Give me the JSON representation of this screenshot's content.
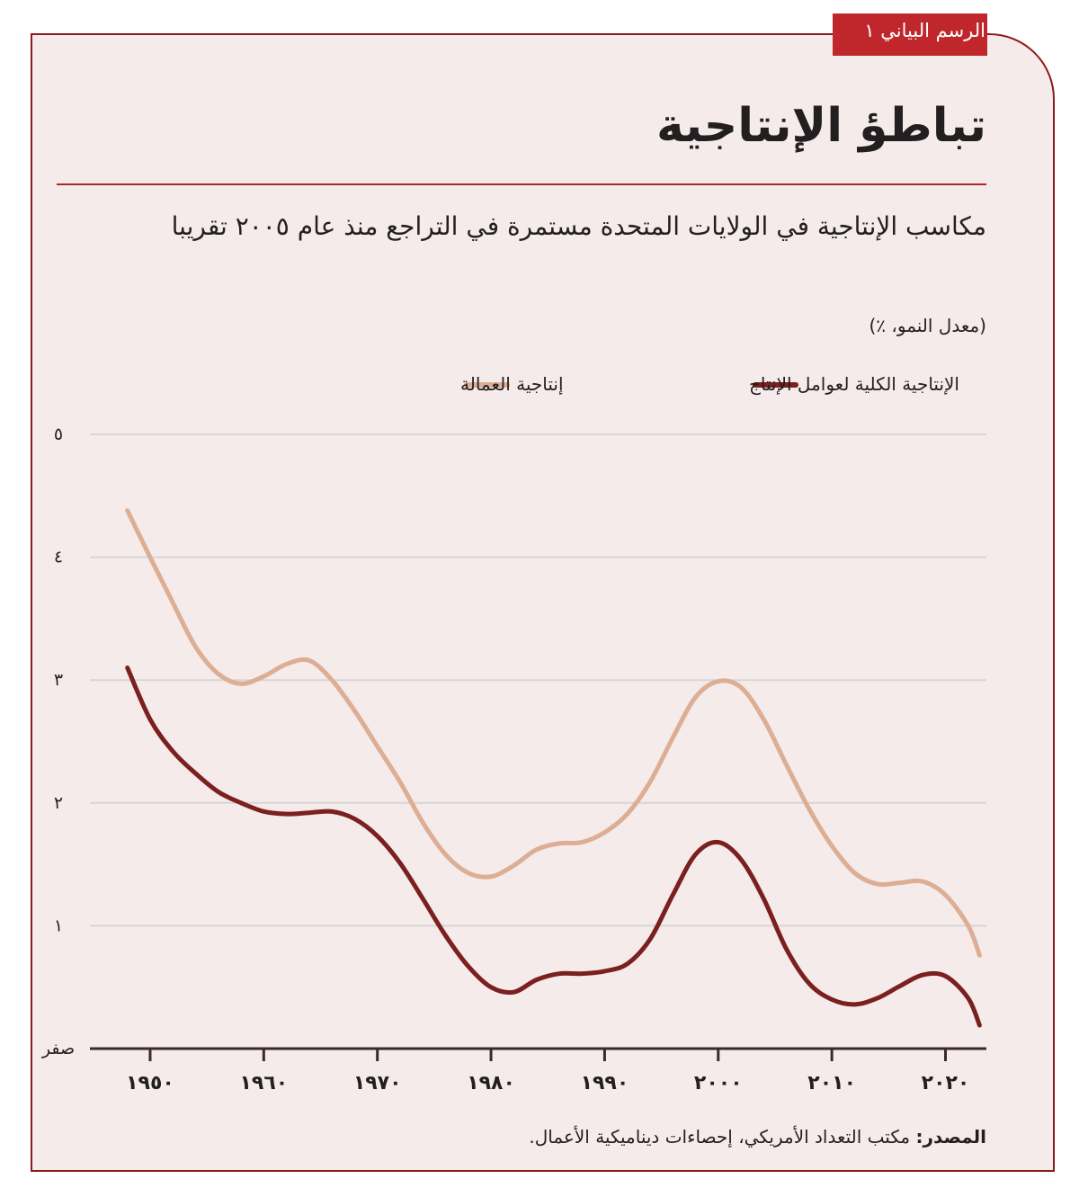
{
  "badge": "الرسم البياني ١",
  "chart_data": {
    "type": "line",
    "title": "تباطؤ الإنتاجية",
    "subtitle": "مكاسب الإنتاجية في الولايات المتحدة مستمرة في التراجع منذ عام ٢٠٠٥ تقريبا",
    "y_label": "(معدل النمو، ٪)",
    "x": [
      1948,
      1950,
      1952,
      1954,
      1956,
      1958,
      1960,
      1962,
      1964,
      1966,
      1968,
      1970,
      1972,
      1974,
      1976,
      1978,
      1980,
      1982,
      1984,
      1986,
      1988,
      1990,
      1992,
      1994,
      1996,
      1998,
      2000,
      2002,
      2004,
      2006,
      2008,
      2010,
      2012,
      2014,
      2016,
      2018,
      2020,
      2022,
      2023
    ],
    "series": [
      {
        "name": "الإنتاجية الكلية لعوامل الإنتاج",
        "color": "#7b1f1f",
        "values": [
          3.1,
          2.68,
          2.42,
          2.24,
          2.09,
          2.0,
          1.93,
          1.91,
          1.92,
          1.93,
          1.87,
          1.73,
          1.51,
          1.22,
          0.92,
          0.67,
          0.5,
          0.46,
          0.56,
          0.61,
          0.61,
          0.63,
          0.69,
          0.89,
          1.25,
          1.58,
          1.68,
          1.54,
          1.22,
          0.81,
          0.53,
          0.4,
          0.36,
          0.41,
          0.51,
          0.6,
          0.59,
          0.41,
          0.19
        ]
      },
      {
        "name": "إنتاجية العمالة",
        "color": "#dcae94",
        "values": [
          4.38,
          4.0,
          3.63,
          3.27,
          3.05,
          2.97,
          3.03,
          3.13,
          3.16,
          3.0,
          2.75,
          2.46,
          2.17,
          1.84,
          1.58,
          1.43,
          1.4,
          1.49,
          1.62,
          1.67,
          1.68,
          1.76,
          1.91,
          2.17,
          2.53,
          2.86,
          2.99,
          2.94,
          2.68,
          2.31,
          1.95,
          1.65,
          1.43,
          1.34,
          1.35,
          1.36,
          1.25,
          1.0,
          0.76
        ]
      }
    ],
    "xlim": [
      1944.7,
      2023.6
    ],
    "xticks": [
      {
        "value": 1950,
        "label": "١٩٥٠"
      },
      {
        "value": 1960,
        "label": "١٩٦٠"
      },
      {
        "value": 1970,
        "label": "١٩٧٠"
      },
      {
        "value": 1980,
        "label": "١٩٨٠"
      },
      {
        "value": 1990,
        "label": "١٩٩٠"
      },
      {
        "value": 2000,
        "label": "٢٠٠٠"
      },
      {
        "value": 2010,
        "label": "٢٠١٠"
      },
      {
        "value": 2020,
        "label": "٢٠٢٠"
      }
    ],
    "ylim": [
      0,
      5
    ],
    "yticks": [
      {
        "value": 0,
        "label": "صفر"
      },
      {
        "value": 1,
        "label": "١"
      },
      {
        "value": 2,
        "label": "٢"
      },
      {
        "value": 3,
        "label": "٣"
      },
      {
        "value": 4,
        "label": "٤"
      },
      {
        "value": 5,
        "label": "٥"
      }
    ],
    "grid": true
  },
  "source": {
    "label": "المصدر:",
    "text": "مكتب التعداد الأمريكي، إحصاءات ديناميكية الأعمال."
  }
}
